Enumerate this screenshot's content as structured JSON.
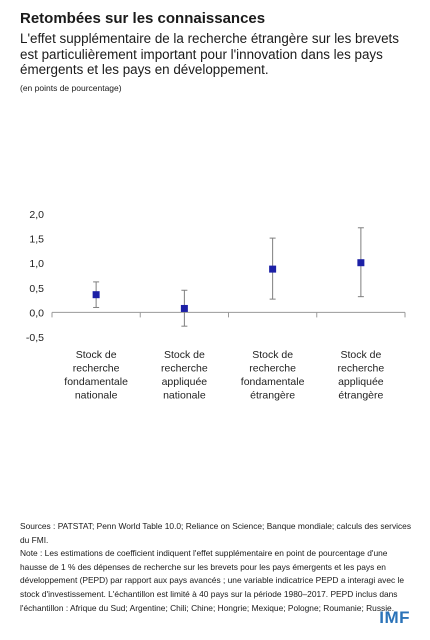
{
  "header": {
    "title": "Retombées sur les connaissances",
    "subtitle": "L'effet supplémentaire de la recherche étrangère sur les brevets est particulièrement important pour l'innovation dans les pays émergents et les pays en développement.",
    "unit": "(en points de pourcentage)"
  },
  "chart_data": {
    "type": "scatter",
    "title": "",
    "xlabel": "",
    "ylabel": "",
    "ylim": [
      -0.5,
      2.0
    ],
    "yticks": [
      "2,0",
      "1,5",
      "1,0",
      "0,5",
      "0,0",
      "-0,5"
    ],
    "categories": [
      [
        "Stock de",
        "recherche",
        "fondamentale",
        "nationale"
      ],
      [
        "Stock de",
        "recherche",
        "appliquée",
        "nationale"
      ],
      [
        "Stock de",
        "recherche",
        "fondamentale",
        "étrangère"
      ],
      [
        "Stock de",
        "recherche",
        "appliquée",
        "étrangère"
      ]
    ],
    "series": [
      {
        "values": [
          0.36,
          0.08,
          0.88,
          1.01
        ],
        "lower": [
          0.1,
          -0.28,
          0.27,
          0.32
        ],
        "upper": [
          0.62,
          0.45,
          1.51,
          1.72
        ]
      }
    ],
    "grid": false,
    "marker_color": "#1c20a6",
    "errorbar_color": "#7f7f7f"
  },
  "notes": {
    "sources": "Sources : PATSTAT; Penn World Table 10.0; Reliance on Science; Banque mondiale; calculs des services du FMI.",
    "note": "Note : Les estimations de coefficient indiquent l'effet supplémentaire en point de pourcentage d'une hausse de 1 % des dépenses de recherche sur les brevets pour les pays émergents et les pays en développement (PEPD) par rapport aux pays avancés ; une variable indicatrice PEPD a interagi avec le stock d'investissement. L'échantillon est limité à 40 pays sur la période 1980–2017. PEPD inclus dans l'échantillon : Afrique du Sud; Argentine; Chili; Chine; Hongrie; Mexique; Pologne; Roumanie; Russie."
  },
  "brand": {
    "logo_text": "IMF",
    "logo_color": "#2b73b8"
  }
}
